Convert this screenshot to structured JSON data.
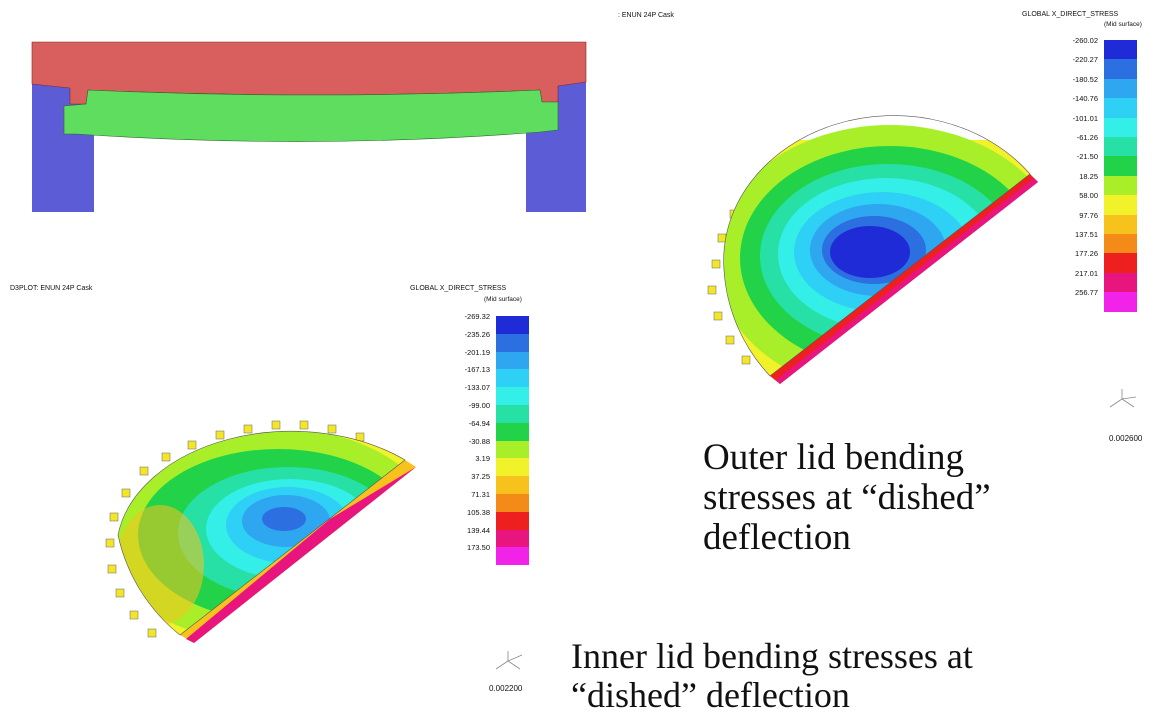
{
  "top_beam_diagram": {
    "colors": {
      "lid_top": "#d95f5f",
      "lid_inner": "#5fdd5f",
      "support": "#5c5cd6"
    }
  },
  "outer_panel": {
    "header_title": ": ENUN 24P Cask",
    "legend_title": "GLOBAL  X_DIRECT_STRESS",
    "legend_subtitle": "(Mid surface)",
    "legend_values": [
      "-260.02",
      "-220.27",
      "-180.52",
      "-140.76",
      "-101.01",
      "-61.26",
      "-21.50",
      "18.25",
      "58.00",
      "97.76",
      "137.51",
      "177.26",
      "217.01",
      "256.77"
    ],
    "legend_colors": [
      "#1f2bd6",
      "#2b6fe0",
      "#2fa6f0",
      "#2fd0f5",
      "#33efe8",
      "#27e0a6",
      "#22d34a",
      "#a8ef2a",
      "#f2f22a",
      "#f7c21c",
      "#f48a18",
      "#ee1f1f",
      "#e8157f",
      "#f223e8"
    ],
    "scale_value": "0.002600",
    "caption_lines": [
      "Outer lid bending",
      "stresses at “dished”",
      "deflection"
    ]
  },
  "inner_panel": {
    "header_title": "D3PLOT: ENUN 24P Cask",
    "legend_title": "GLOBAL  X_DIRECT_STRESS",
    "legend_subtitle": "(Mid surface)",
    "legend_values": [
      "-269.32",
      "-235.26",
      "-201.19",
      "-167.13",
      "-133.07",
      "-99.00",
      "-64.94",
      "-30.88",
      "3.19",
      "37.25",
      "71.31",
      "105.38",
      "139.44",
      "173.50"
    ],
    "legend_colors": [
      "#1f2bd6",
      "#2b6fe0",
      "#2fa6f0",
      "#2fd0f5",
      "#33efe8",
      "#27e0a6",
      "#22d34a",
      "#a8ef2a",
      "#f2f22a",
      "#f7c21c",
      "#f48a18",
      "#ee1f1f",
      "#e8157f",
      "#f223e8"
    ],
    "scale_value": "0.002200",
    "caption_lines": [
      "Inner lid bending stresses at",
      "“dished” deflection"
    ]
  }
}
